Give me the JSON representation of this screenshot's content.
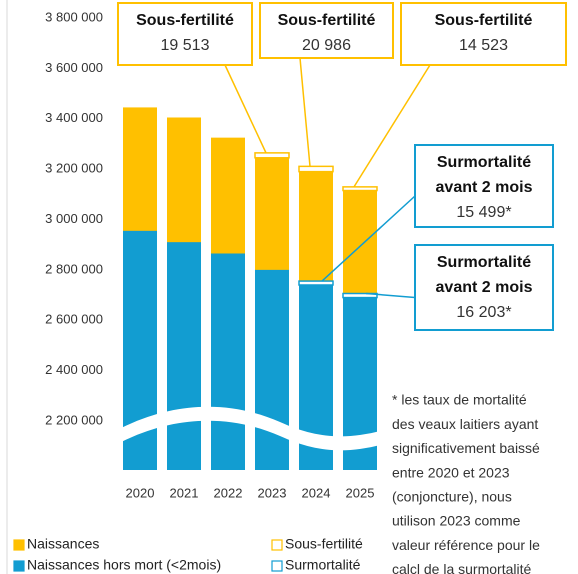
{
  "chart_data": {
    "type": "bar",
    "categories": [
      "2020",
      "2021",
      "2022",
      "2023",
      "2024",
      "2025"
    ],
    "series": [
      {
        "name": "Naissances",
        "color": "#FFC000",
        "values": [
          3445000,
          3405000,
          3325000,
          3245000,
          3190000,
          3115000
        ]
      },
      {
        "name": "Naissances hors mort (<2mois)",
        "color": "#129DD1",
        "values": [
          2955000,
          2910000,
          2865000,
          2800000,
          2740000,
          2690000
        ]
      },
      {
        "name": "Sous-fertilité",
        "color": "#FFC000",
        "values": [
          null,
          null,
          null,
          19513,
          20986,
          14523
        ],
        "value_labels": [
          null,
          null,
          null,
          "19 513",
          "20 986",
          "14 523"
        ]
      },
      {
        "name": "Surmortalité",
        "color": "#129DD1",
        "values": [
          null,
          null,
          null,
          null,
          15499,
          16203
        ],
        "value_labels": [
          null,
          null,
          null,
          null,
          "15 499*",
          "16 203*"
        ]
      }
    ],
    "ylim": [
      2200000,
      3800000
    ],
    "yticks": [
      {
        "value": 2200000,
        "label": "2 200 000"
      },
      {
        "value": 2400000,
        "label": "2 400 000"
      },
      {
        "value": 2600000,
        "label": "2 600 000"
      },
      {
        "value": 2800000,
        "label": "2 800 000"
      },
      {
        "value": 3000000,
        "label": "3 000 000"
      },
      {
        "value": 3200000,
        "label": "3 200 000"
      },
      {
        "value": 3400000,
        "label": "3 400 000"
      },
      {
        "value": 3600000,
        "label": "3 600 000"
      },
      {
        "value": 3800000,
        "label": "3 800 000"
      }
    ],
    "callouts": [
      {
        "lines": [
          "Sous-fertilité"
        ]
      },
      {
        "lines": [
          "Sous-fertilité"
        ]
      },
      {
        "lines": [
          "Sous-fertilité"
        ]
      },
      {
        "lines": [
          "Surmortalité",
          "avant 2 mois"
        ]
      },
      {
        "lines": [
          "Surmortalité",
          "avant 2 mois"
        ]
      }
    ],
    "footnote": [
      "* les taux de mortalité",
      "des veaux laitiers ayant",
      "significativement baissé",
      "entre 2020 et 2023",
      "(conjoncture), nous",
      "utilison 2023 comme",
      "valeur référence pour le",
      "calcl de la surmortalité"
    ]
  }
}
